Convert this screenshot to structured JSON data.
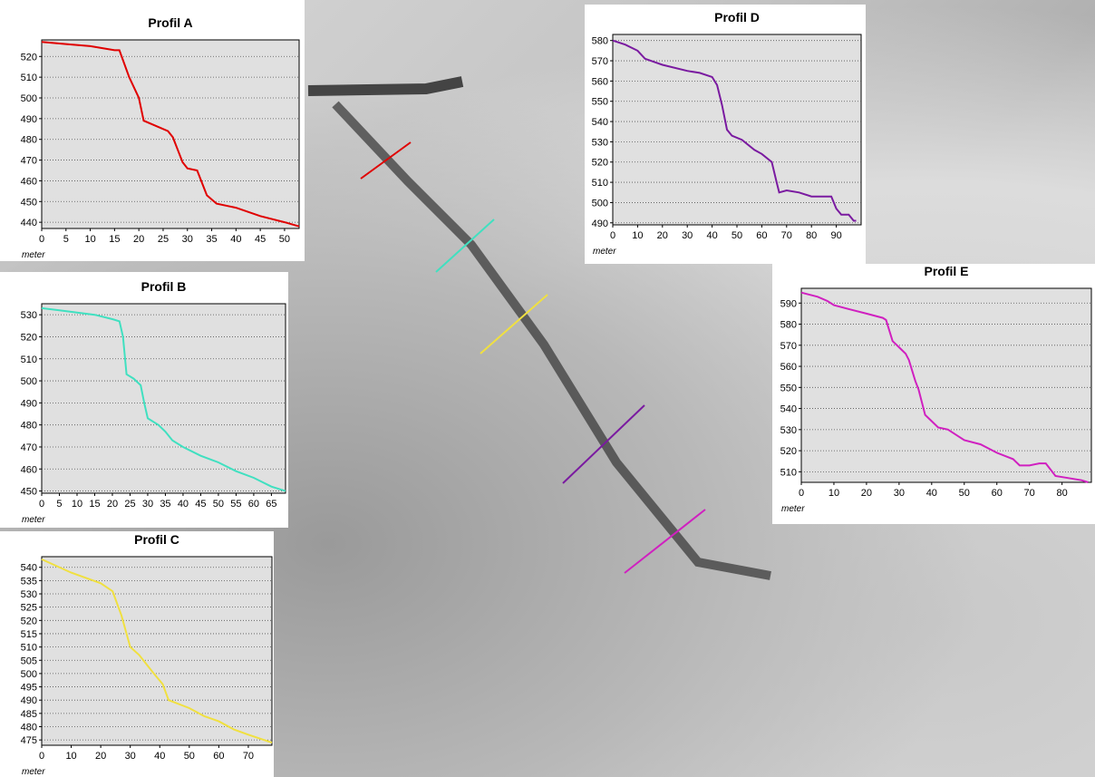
{
  "chart_data": [
    {
      "type": "line",
      "title": "Profil A",
      "x_label": "meter",
      "color": "#e00000",
      "grid": true,
      "x": [
        0,
        5,
        10,
        15,
        16,
        18,
        20,
        21,
        23,
        26,
        27,
        29,
        30,
        32,
        34,
        36,
        40,
        45,
        50,
        53
      ],
      "values": [
        527,
        526,
        525,
        523,
        523,
        510,
        500,
        489,
        487,
        484,
        481,
        469,
        466,
        465,
        453,
        449,
        447,
        443,
        440,
        438
      ],
      "xlim": [
        0,
        53
      ],
      "ylim": [
        437,
        528
      ],
      "xticks": [
        0,
        5,
        10,
        15,
        20,
        25,
        30,
        35,
        40,
        45,
        50
      ],
      "yticks": [
        440,
        450,
        460,
        470,
        480,
        490,
        500,
        510,
        520
      ]
    },
    {
      "type": "line",
      "title": "Profil B",
      "x_label": "meter",
      "color": "#40e0c0",
      "grid": true,
      "x": [
        0,
        5,
        10,
        15,
        20,
        22,
        23,
        24,
        26,
        28,
        29,
        30,
        33,
        35,
        37,
        40,
        45,
        50,
        55,
        60,
        65,
        69
      ],
      "values": [
        533,
        532,
        531,
        530,
        528,
        527,
        520,
        503,
        501,
        498,
        490,
        483,
        480,
        477,
        473,
        470,
        466,
        463,
        459,
        456,
        452,
        450
      ],
      "xlim": [
        0,
        69
      ],
      "ylim": [
        449,
        535
      ],
      "xticks": [
        0,
        5,
        10,
        15,
        20,
        25,
        30,
        35,
        40,
        45,
        50,
        55,
        60,
        65
      ],
      "yticks": [
        450,
        460,
        470,
        480,
        490,
        500,
        510,
        520,
        530
      ]
    },
    {
      "type": "line",
      "title": "Profil C",
      "x_label": "meter",
      "color": "#f0e040",
      "grid": true,
      "x": [
        0,
        10,
        20,
        24,
        27,
        30,
        33,
        38,
        41,
        43,
        50,
        55,
        60,
        65,
        70,
        78
      ],
      "values": [
        543,
        538,
        534,
        531,
        522,
        510,
        507,
        500,
        496,
        490,
        487,
        484,
        482,
        479,
        477,
        474
      ],
      "xlim": [
        0,
        78
      ],
      "ylim": [
        473,
        544
      ],
      "xticks": [
        0,
        10,
        20,
        30,
        40,
        50,
        60,
        70
      ],
      "yticks": [
        475,
        480,
        485,
        490,
        495,
        500,
        505,
        510,
        515,
        520,
        525,
        530,
        535,
        540
      ]
    },
    {
      "type": "line",
      "title": "Profil D",
      "x_label": "meter",
      "color": "#7a1aa0",
      "grid": true,
      "x": [
        0,
        5,
        10,
        13,
        20,
        30,
        35,
        40,
        42,
        44,
        46,
        48,
        52,
        57,
        60,
        64,
        66,
        67,
        70,
        75,
        80,
        85,
        88,
        90,
        92,
        95,
        97,
        98
      ],
      "values": [
        580,
        578,
        575,
        571,
        568,
        565,
        564,
        562,
        558,
        548,
        536,
        533,
        531,
        526,
        524,
        520,
        510,
        505,
        506,
        505,
        503,
        503,
        503,
        497,
        494,
        494,
        491,
        491
      ],
      "xlim": [
        0,
        100
      ],
      "ylim": [
        489,
        583
      ],
      "xticks": [
        0,
        10,
        20,
        30,
        40,
        50,
        60,
        70,
        80,
        90
      ],
      "yticks": [
        490,
        500,
        510,
        520,
        530,
        540,
        550,
        560,
        570,
        580
      ]
    },
    {
      "type": "line",
      "title": "Profil E",
      "x_label": "meter",
      "color": "#d020c0",
      "grid": true,
      "x": [
        0,
        5,
        8,
        10,
        15,
        20,
        25,
        26,
        28,
        30,
        32,
        33,
        35,
        36,
        37,
        38,
        40,
        42,
        45,
        48,
        50,
        55,
        60,
        65,
        67,
        70,
        73,
        75,
        76,
        78,
        82,
        86,
        88
      ],
      "values": [
        595,
        593,
        591,
        589,
        587,
        585,
        583,
        582,
        572,
        569,
        566,
        563,
        553,
        549,
        543,
        537,
        534,
        531,
        530,
        527,
        525,
        523,
        519,
        516,
        513,
        513,
        514,
        514,
        512,
        508,
        507,
        506,
        505
      ],
      "xlim": [
        0,
        89
      ],
      "ylim": [
        505,
        597
      ],
      "xticks": [
        0,
        10,
        20,
        30,
        40,
        50,
        60,
        70,
        80
      ],
      "yticks": [
        510,
        520,
        530,
        540,
        550,
        560,
        570,
        580,
        590
      ]
    }
  ]
}
